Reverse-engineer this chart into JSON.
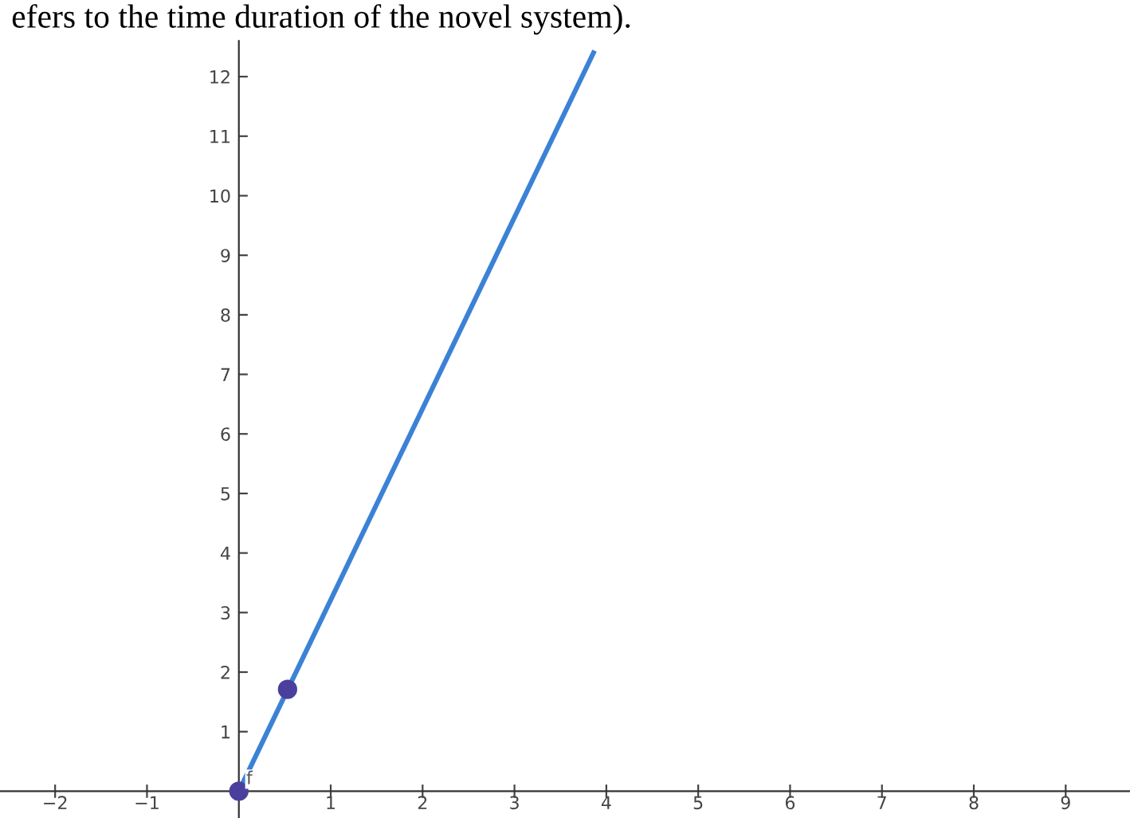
{
  "chart_data": {
    "type": "line",
    "annotations": [
      "efers to the time duration of the novel system)."
    ],
    "xlim": [
      -2.6,
      9.7
    ],
    "ylim": [
      -0.45,
      12.6
    ],
    "xticks": [
      {
        "value": -2,
        "label": "−2"
      },
      {
        "value": -1,
        "label": "−1"
      },
      1,
      2,
      3,
      4,
      5,
      6,
      7,
      8,
      9
    ],
    "yticks": [
      1,
      2,
      3,
      4,
      5,
      6,
      7,
      8,
      9,
      10,
      11,
      12
    ],
    "grid": false,
    "legend": false,
    "series": [
      {
        "name": "f",
        "color": "#3b82d6",
        "marker": "none",
        "x": [
          0,
          3.86
        ],
        "values": [
          0,
          12.4
        ]
      },
      {
        "type": "scatter",
        "color": "#4b3f9e",
        "marker": "circle",
        "x": [
          0,
          0.53
        ],
        "values": [
          0,
          1.71
        ]
      }
    ]
  }
}
